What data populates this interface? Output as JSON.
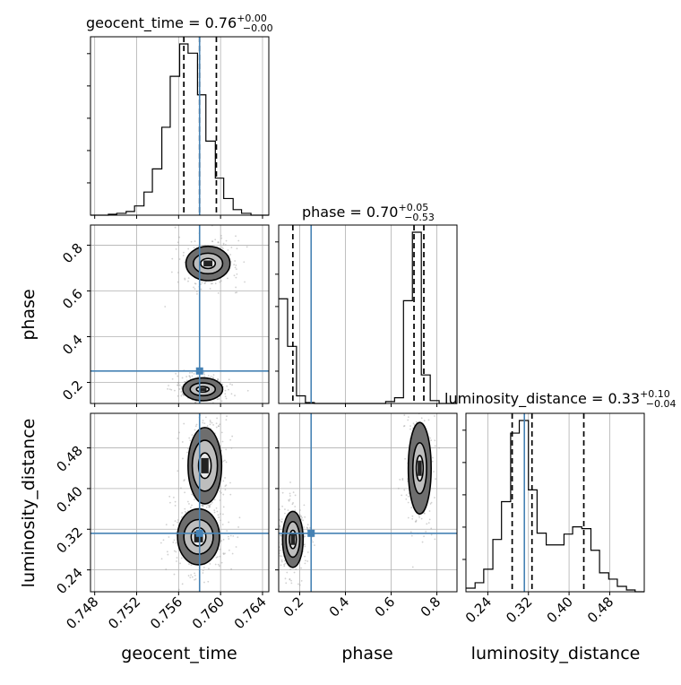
{
  "chart_data": {
    "type": "corner",
    "parameters": [
      "geocent_time",
      "phase",
      "luminosity_distance"
    ],
    "truths": {
      "geocent_time": 0.758,
      "phase": 0.25,
      "luminosity_distance": 0.312
    },
    "truth_color": "#4682b4",
    "titles": [
      {
        "name": "geocent_time",
        "median": "0.76",
        "plus": "+0.00",
        "minus": "−0.00"
      },
      {
        "name": "phase",
        "median": "0.70",
        "plus": "+0.05",
        "minus": "−0.53"
      },
      {
        "name": "luminosity_distance",
        "median": "0.33",
        "plus": "+0.10",
        "minus": "−0.04"
      }
    ],
    "axis_labels": {
      "x": [
        "geocent_time",
        "phase",
        "luminosity_distance"
      ],
      "y": [
        "phase",
        "luminosity_distance"
      ]
    },
    "ticks": {
      "geocent_time": [
        "0.748",
        "0.752",
        "0.756",
        "0.760",
        "0.764"
      ],
      "phase": [
        "0.2",
        "0.4",
        "0.6",
        "0.8"
      ],
      "luminosity_distance": [
        "0.24",
        "0.32",
        "0.40",
        "0.48"
      ]
    },
    "tick_values": {
      "geocent_time": [
        0.748,
        0.752,
        0.756,
        0.76,
        0.764
      ],
      "phase": [
        0.2,
        0.4,
        0.6,
        0.8
      ],
      "luminosity_distance": [
        0.24,
        0.32,
        0.4,
        0.48
      ]
    },
    "ranges": {
      "geocent_time": [
        0.7476,
        0.7646
      ],
      "phase": [
        0.108,
        0.888
      ],
      "luminosity_distance": [
        0.197,
        0.548
      ]
    },
    "quantiles": {
      "geocent_time": [
        0.7565,
        0.758,
        0.7596
      ],
      "phase": [
        0.17,
        0.7,
        0.743
      ],
      "luminosity_distance": [
        0.288,
        0.327,
        0.429
      ]
    },
    "histograms": {
      "geocent_time": {
        "edges": [
          0.7476,
          0.7484,
          0.7493,
          0.7501,
          0.751,
          0.7518,
          0.7527,
          0.7535,
          0.7544,
          0.7552,
          0.7561,
          0.7569,
          0.7578,
          0.7586,
          0.7595,
          0.7603,
          0.7612,
          0.762,
          0.7629,
          0.7637,
          0.7646
        ],
        "counts": [
          0,
          0,
          1,
          2,
          4,
          10,
          25,
          50,
          95,
          150,
          185,
          175,
          130,
          80,
          40,
          18,
          6,
          2,
          0,
          0
        ]
      },
      "phase": {
        "edges": [
          0.108,
          0.147,
          0.186,
          0.225,
          0.264,
          0.303,
          0.342,
          0.381,
          0.42,
          0.459,
          0.498,
          0.537,
          0.576,
          0.615,
          0.654,
          0.693,
          0.732,
          0.771,
          0.81,
          0.849,
          0.888
        ],
        "counts": [
          110,
          60,
          8,
          1,
          0,
          0,
          0,
          0,
          0,
          0,
          0,
          0,
          2,
          6,
          108,
          180,
          30,
          3,
          0,
          0
        ]
      },
      "luminosity_distance": {
        "edges": [
          0.197,
          0.215,
          0.232,
          0.25,
          0.267,
          0.285,
          0.302,
          0.32,
          0.337,
          0.355,
          0.372,
          0.39,
          0.407,
          0.425,
          0.443,
          0.46,
          0.478,
          0.495,
          0.513,
          0.53,
          0.548
        ],
        "counts": [
          4,
          10,
          25,
          58,
          100,
          176,
          190,
          113,
          65,
          52,
          52,
          64,
          72,
          70,
          46,
          21,
          14,
          6,
          2,
          0
        ]
      }
    },
    "contours": {
      "phase|geocent_time": [
        {
          "cx": 0.7588,
          "cy": 0.72,
          "levels": [
            [
              0.0007,
              0.022
            ],
            [
              0.0014,
              0.045
            ],
            [
              0.0021,
              0.075
            ]
          ]
        },
        {
          "cx": 0.7583,
          "cy": 0.17,
          "levels": [
            [
              0.0006,
              0.012
            ],
            [
              0.0012,
              0.028
            ],
            [
              0.0019,
              0.05
            ]
          ]
        }
      ],
      "luminosity_distance|geocent_time": [
        {
          "cx": 0.7579,
          "cy": 0.305,
          "levels": [
            [
              0.0007,
              0.018
            ],
            [
              0.0014,
              0.034
            ],
            [
              0.002,
              0.055
            ]
          ]
        },
        {
          "cx": 0.7585,
          "cy": 0.445,
          "levels": [
            [
              0.0006,
              0.025
            ],
            [
              0.0012,
              0.05
            ],
            [
              0.0016,
              0.075
            ]
          ]
        }
      ],
      "luminosity_distance|phase": [
        {
          "cx": 0.17,
          "cy": 0.3,
          "levels": [
            [
              0.015,
              0.018
            ],
            [
              0.03,
              0.035
            ],
            [
              0.045,
              0.055
            ]
          ]
        },
        {
          "cx": 0.725,
          "cy": 0.44,
          "levels": [
            [
              0.015,
              0.025
            ],
            [
              0.03,
              0.05
            ],
            [
              0.05,
              0.09
            ]
          ]
        }
      ]
    },
    "grid": true,
    "histogram_color": "#000000",
    "quantile_style": "dashed",
    "hist_density_shading": true
  }
}
